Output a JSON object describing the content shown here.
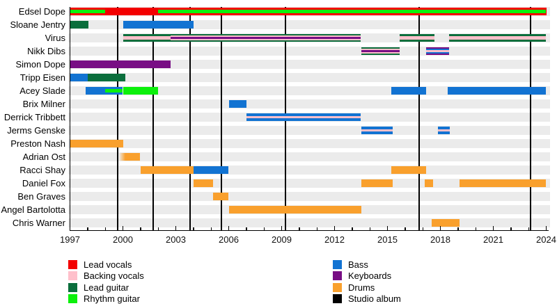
{
  "chart_data": {
    "type": "timeline",
    "description": "Band members timeline (roles over years) with studio album release lines",
    "x_axis": {
      "start": 1997,
      "end": 2024,
      "tick_interval": 1,
      "label_interval": 3,
      "labels": [
        "1997",
        "2000",
        "2003",
        "2006",
        "2009",
        "2012",
        "2015",
        "2018",
        "2021",
        "2024"
      ]
    },
    "roles": {
      "lead_vocals": "#f30000",
      "backing_vocals": "#ffc0cb",
      "lead_guitar": "#0b6e3c",
      "rhythm_guitar": "#0cf00c",
      "bass": "#1273d2",
      "keyboards": "#780e84",
      "drums": "#f9a02d"
    },
    "legend": [
      {
        "label": "Lead vocals",
        "color": "#f30000",
        "column": 0
      },
      {
        "label": "Backing vocals",
        "color": "#ffc0cb",
        "column": 0
      },
      {
        "label": "Lead guitar",
        "color": "#0b6e3c",
        "column": 0
      },
      {
        "label": "Rhythm guitar",
        "color": "#0cf00c",
        "column": 0
      },
      {
        "label": "Bass",
        "color": "#1273d2",
        "column": 1
      },
      {
        "label": "Keyboards",
        "color": "#780e84",
        "column": 1
      },
      {
        "label": "Drums",
        "color": "#f9a02d",
        "column": 1
      },
      {
        "label": "Studio album",
        "color": "#000000",
        "column": 1
      }
    ],
    "album_release_years": [
      1999.7,
      2001.7,
      2003.8,
      2005.6,
      2009.2,
      2016.8,
      2023.1
    ],
    "members": [
      {
        "name": "Edsel Dope",
        "segments": [
          {
            "from": 1997,
            "till": 2024,
            "stripes": [
              {
                "role": "lead_vocals",
                "h": 11
              }
            ]
          },
          {
            "from": 1997,
            "till": 1999,
            "stripes": [
              {
                "role": "rhythm_guitar",
                "h": 5
              }
            ]
          },
          {
            "from": 2002,
            "till": 2024,
            "stripes": [
              {
                "role": "rhythm_guitar",
                "h": 5
              }
            ]
          }
        ]
      },
      {
        "name": "Sloane Jentry",
        "segments": [
          {
            "from": 1997,
            "till": 1998.05,
            "stripes": [
              {
                "role": "lead_guitar",
                "h": 11
              }
            ]
          },
          {
            "from": 2000,
            "till": 2004,
            "stripes": [
              {
                "role": "bass",
                "h": 11
              }
            ]
          }
        ]
      },
      {
        "name": "Virus",
        "segments": [
          {
            "from": 2000,
            "till": 2002.7,
            "stripes": [
              {
                "role": "lead_guitar",
                "h": 11
              },
              {
                "role": "backing_vocals",
                "h": 5
              }
            ]
          },
          {
            "from": 2002.7,
            "till": 2013.5,
            "stripes": [
              {
                "role": "lead_guitar",
                "h": 11
              },
              {
                "role": "backing_vocals",
                "h": 7
              },
              {
                "role": "keyboards",
                "h": 3
              }
            ]
          },
          {
            "from": 2015.7,
            "till": 2017.65,
            "stripes": [
              {
                "role": "lead_guitar",
                "h": 11
              },
              {
                "role": "backing_vocals",
                "h": 5
              }
            ]
          },
          {
            "from": 2018.5,
            "till": 2024,
            "stripes": [
              {
                "role": "lead_guitar",
                "h": 11
              },
              {
                "role": "backing_vocals",
                "h": 5
              }
            ]
          }
        ]
      },
      {
        "name": "Nikk Dibs",
        "segments": [
          {
            "from": 2013.5,
            "till": 2015.7,
            "stripes": [
              {
                "role": "lead_guitar",
                "h": 11
              },
              {
                "role": "backing_vocals",
                "h": 7
              },
              {
                "role": "keyboards",
                "h": 3
              }
            ]
          },
          {
            "from": 2017.2,
            "till": 2018.5,
            "stripes": [
              {
                "role": "keyboards",
                "h": 11
              },
              {
                "role": "bass",
                "h": 7
              },
              {
                "role": "backing_vocals",
                "h": 3
              }
            ]
          }
        ]
      },
      {
        "name": "Simon Dope",
        "segments": [
          {
            "from": 1997,
            "till": 2002.7,
            "stripes": [
              {
                "role": "keyboards",
                "h": 11
              }
            ]
          }
        ]
      },
      {
        "name": "Tripp Eisen",
        "segments": [
          {
            "from": 1997,
            "till": 1998,
            "stripes": [
              {
                "role": "bass",
                "h": 11
              }
            ]
          },
          {
            "from": 1998,
            "till": 2000.15,
            "stripes": [
              {
                "role": "lead_guitar",
                "h": 11
              }
            ]
          }
        ]
      },
      {
        "name": "Acey Slade",
        "segments": [
          {
            "from": 1997.9,
            "till": 2000,
            "stripes": [
              {
                "role": "bass",
                "h": 11
              }
            ]
          },
          {
            "from": 1999,
            "till": 2000,
            "stripes": [
              {
                "role": "rhythm_guitar",
                "h": 5
              }
            ]
          },
          {
            "from": 2000,
            "till": 2002,
            "stripes": [
              {
                "role": "rhythm_guitar",
                "h": 11
              }
            ]
          },
          {
            "from": 2015.2,
            "till": 2017.2,
            "stripes": [
              {
                "role": "bass",
                "h": 11
              }
            ]
          },
          {
            "from": 2018.4,
            "till": 2024,
            "stripes": [
              {
                "role": "bass",
                "h": 11
              }
            ]
          }
        ]
      },
      {
        "name": "Brix Milner",
        "segments": [
          {
            "from": 2006,
            "till": 2007,
            "stripes": [
              {
                "role": "bass",
                "h": 11
              }
            ]
          }
        ]
      },
      {
        "name": "Derrick Tribbett",
        "segments": [
          {
            "from": 2007,
            "till": 2013.5,
            "stripes": [
              {
                "role": "bass",
                "h": 11
              },
              {
                "role": "backing_vocals",
                "h": 3
              }
            ]
          }
        ]
      },
      {
        "name": "Jerms Genske",
        "segments": [
          {
            "from": 2013.5,
            "till": 2015.3,
            "stripes": [
              {
                "role": "bass",
                "h": 11
              },
              {
                "role": "backing_vocals",
                "h": 3
              }
            ]
          },
          {
            "from": 2017.85,
            "till": 2018.55,
            "stripes": [
              {
                "role": "bass",
                "h": 11
              },
              {
                "role": "backing_vocals",
                "h": 3
              }
            ]
          }
        ]
      },
      {
        "name": "Preston Nash",
        "segments": [
          {
            "from": 1997,
            "till": 2000,
            "stripes": [
              {
                "role": "drums",
                "h": 11
              }
            ]
          }
        ]
      },
      {
        "name": "Adrian Ost",
        "segments": [
          {
            "from": 1999.8,
            "till": 2000.95,
            "stripes": [
              {
                "role": "drums",
                "h": 11
              }
            ],
            "fade_left": true
          }
        ]
      },
      {
        "name": "Racci Shay",
        "segments": [
          {
            "from": 2001,
            "till": 2004,
            "stripes": [
              {
                "role": "drums",
                "h": 11
              }
            ]
          },
          {
            "from": 2004,
            "till": 2006,
            "stripes": [
              {
                "role": "bass",
                "h": 11
              }
            ]
          },
          {
            "from": 2015.2,
            "till": 2017.2,
            "stripes": [
              {
                "role": "drums",
                "h": 11
              }
            ]
          }
        ]
      },
      {
        "name": "Daniel Fox",
        "segments": [
          {
            "from": 2004,
            "till": 2005.1,
            "stripes": [
              {
                "role": "drums",
                "h": 11
              }
            ]
          },
          {
            "from": 2013.5,
            "till": 2015.3,
            "stripes": [
              {
                "role": "drums",
                "h": 11
              }
            ]
          },
          {
            "from": 2017.1,
            "till": 2017.6,
            "stripes": [
              {
                "role": "drums",
                "h": 11
              }
            ]
          },
          {
            "from": 2019.1,
            "till": 2024,
            "stripes": [
              {
                "role": "drums",
                "h": 11
              }
            ]
          }
        ]
      },
      {
        "name": "Ben Graves",
        "segments": [
          {
            "from": 2005.1,
            "till": 2006,
            "stripes": [
              {
                "role": "drums",
                "h": 11
              }
            ]
          }
        ]
      },
      {
        "name": "Angel Bartolotta",
        "segments": [
          {
            "from": 2006,
            "till": 2013.5,
            "stripes": [
              {
                "role": "drums",
                "h": 11
              }
            ]
          }
        ]
      },
      {
        "name": "Chris Warner",
        "segments": [
          {
            "from": 2017.5,
            "till": 2019.1,
            "stripes": [
              {
                "role": "drums",
                "h": 11
              }
            ]
          }
        ]
      }
    ]
  }
}
